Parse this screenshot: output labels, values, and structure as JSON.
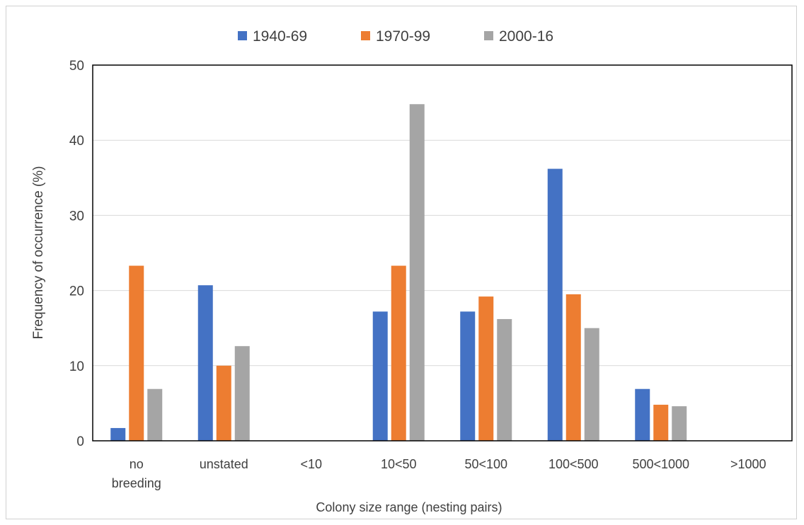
{
  "chart_data": {
    "type": "bar",
    "categories": [
      [
        "no",
        "breeding"
      ],
      [
        "unstated"
      ],
      [
        "<10"
      ],
      [
        "10<50"
      ],
      [
        "50<100"
      ],
      [
        "100<500"
      ],
      [
        "500<1000"
      ],
      [
        ">1000"
      ]
    ],
    "series": [
      {
        "name": "1940-69",
        "color": "#4472C4",
        "values": [
          1.7,
          20.7,
          0,
          17.2,
          17.2,
          36.2,
          6.9,
          0
        ]
      },
      {
        "name": "1970-99",
        "color": "#ED7D31",
        "values": [
          23.3,
          10.0,
          0,
          23.3,
          19.2,
          19.5,
          4.8,
          0
        ]
      },
      {
        "name": "2000-16",
        "color": "#A5A5A5",
        "values": [
          6.9,
          12.6,
          0,
          44.8,
          16.2,
          15.0,
          4.6,
          0
        ]
      }
    ],
    "xlabel": "Colony size range (nesting pairs)",
    "ylabel": "Frequency of occurrence (%)",
    "ylim": [
      0,
      50
    ],
    "yticks": [
      0,
      10,
      20,
      30,
      40,
      50
    ],
    "grid": true,
    "legend_position": "top"
  }
}
